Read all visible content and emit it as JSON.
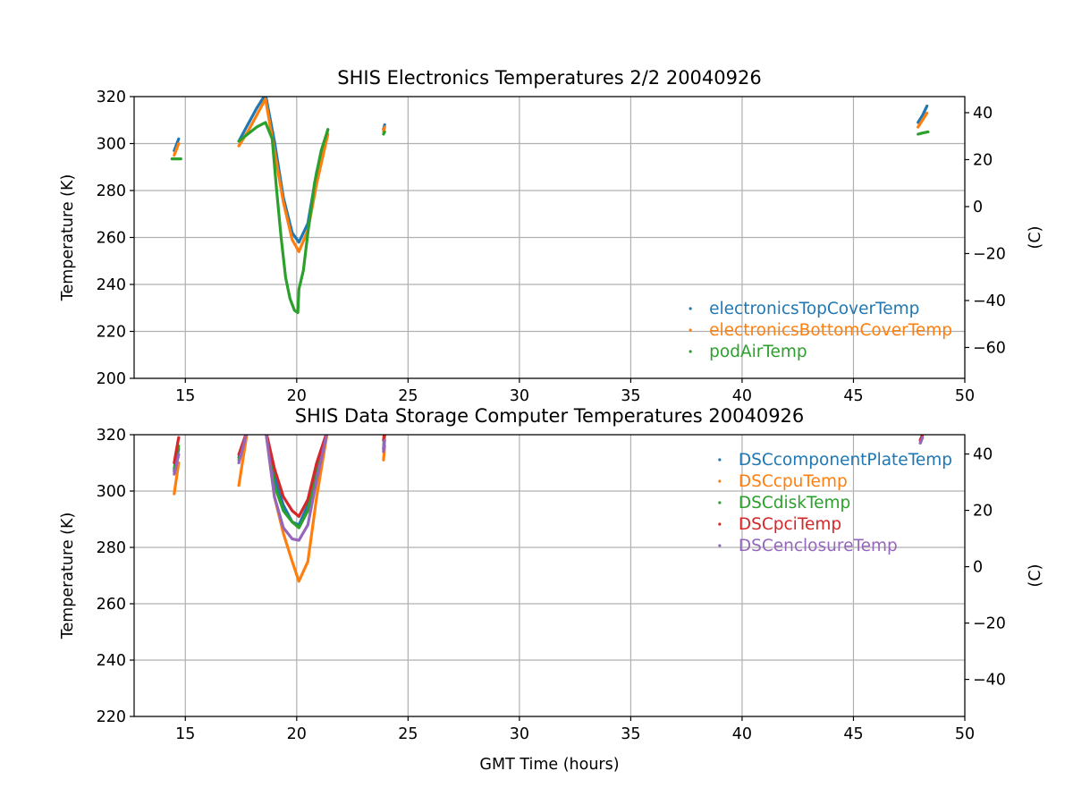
{
  "chart_data": [
    {
      "type": "scatter",
      "title": "SHIS Electronics Temperatures 2/2 20040926",
      "xlabel": "",
      "ylabel": "Temperature (K)",
      "ylabel_right": "(C)",
      "xlim": [
        12.7,
        50.0
      ],
      "ylim": [
        200,
        320
      ],
      "xticks": [
        15,
        20,
        25,
        30,
        35,
        40,
        45,
        50
      ],
      "yticks": [
        200,
        220,
        240,
        260,
        280,
        300,
        320
      ],
      "yticks_right": [
        -60,
        -40,
        -20,
        0,
        20,
        40
      ],
      "grid": true,
      "legend_position": "lower-right",
      "series": [
        {
          "name": "electronicsTopCoverTemp",
          "color": "#1f77b4",
          "segments": [
            [
              [
                14.5,
                297
              ],
              [
                14.7,
                302
              ]
            ],
            [
              [
                17.4,
                301
              ],
              [
                17.8,
                308
              ],
              [
                18.2,
                315
              ],
              [
                18.6,
                321
              ],
              [
                19.0,
                301
              ],
              [
                19.4,
                277
              ],
              [
                19.8,
                262
              ],
              [
                20.1,
                258
              ],
              [
                20.5,
                266
              ],
              [
                20.9,
                288
              ],
              [
                21.4,
                306
              ]
            ],
            [
              [
                23.9,
                306
              ],
              [
                23.95,
                308
              ]
            ],
            [
              [
                47.9,
                309
              ],
              [
                48.1,
                312
              ],
              [
                48.3,
                316
              ]
            ]
          ]
        },
        {
          "name": "electronicsBottomCoverTemp",
          "color": "#ff7f0e",
          "segments": [
            [
              [
                14.5,
                295
              ],
              [
                14.7,
                300
              ]
            ],
            [
              [
                17.4,
                299
              ],
              [
                17.8,
                305
              ],
              [
                18.2,
                312
              ],
              [
                18.6,
                319
              ],
              [
                19.0,
                297
              ],
              [
                19.4,
                275
              ],
              [
                19.8,
                259
              ],
              [
                20.1,
                254
              ],
              [
                20.5,
                263
              ],
              [
                20.9,
                283
              ],
              [
                21.4,
                304
              ]
            ],
            [
              [
                23.9,
                305
              ],
              [
                23.95,
                307
              ]
            ],
            [
              [
                47.9,
                307
              ],
              [
                48.1,
                310
              ],
              [
                48.3,
                313
              ]
            ]
          ]
        },
        {
          "name": "podAirTemp",
          "color": "#2ca02c",
          "segments": [
            [
              [
                14.4,
                293.5
              ],
              [
                14.8,
                293.5
              ]
            ],
            [
              [
                17.4,
                301
              ],
              [
                17.8,
                304
              ],
              [
                18.2,
                307
              ],
              [
                18.6,
                309
              ],
              [
                18.9,
                302
              ],
              [
                19.1,
                280
              ],
              [
                19.3,
                260
              ],
              [
                19.5,
                243
              ],
              [
                19.7,
                234
              ],
              [
                19.9,
                229
              ],
              [
                20.05,
                228
              ],
              [
                20.1,
                238
              ],
              [
                20.3,
                246
              ],
              [
                20.5,
                262
              ],
              [
                20.8,
                283
              ],
              [
                21.1,
                297
              ],
              [
                21.4,
                306
              ]
            ],
            [
              [
                23.9,
                304
              ],
              [
                23.95,
                305
              ]
            ],
            [
              [
                47.9,
                304
              ],
              [
                48.1,
                304.5
              ],
              [
                48.35,
                305
              ]
            ]
          ]
        }
      ]
    },
    {
      "type": "scatter",
      "title": "SHIS Data Storage Computer Temperatures 20040926",
      "xlabel": "GMT Time (hours)",
      "ylabel": "Temperature (K)",
      "ylabel_right": "(C)",
      "xlim": [
        12.7,
        50.0
      ],
      "ylim": [
        220,
        320
      ],
      "xticks": [
        15,
        20,
        25,
        30,
        35,
        40,
        45,
        50
      ],
      "yticks": [
        220,
        240,
        260,
        280,
        300,
        320
      ],
      "yticks_right": [
        -40,
        -20,
        0,
        20,
        40
      ],
      "grid": true,
      "legend_position": "upper-right",
      "series": [
        {
          "name": "DSCcomponentPlateTemp",
          "color": "#1f77b4",
          "segments": [
            [
              [
                14.5,
                307
              ],
              [
                14.7,
                315
              ]
            ],
            [
              [
                17.4,
                312
              ],
              [
                17.8,
                322
              ]
            ],
            [
              [
                18.6,
                322
              ],
              [
                19.0,
                305
              ],
              [
                19.4,
                295
              ],
              [
                19.8,
                289
              ],
              [
                20.1,
                288
              ],
              [
                20.5,
                295
              ],
              [
                20.9,
                308
              ],
              [
                21.4,
                322
              ]
            ],
            [
              [
                23.9,
                315
              ],
              [
                23.95,
                320
              ]
            ],
            [
              [
                48.0,
                318
              ],
              [
                48.1,
                320
              ]
            ]
          ]
        },
        {
          "name": "DSCcpuTemp",
          "color": "#ff7f0e",
          "segments": [
            [
              [
                14.5,
                299
              ],
              [
                14.7,
                310
              ]
            ],
            [
              [
                17.4,
                302
              ],
              [
                17.8,
                322
              ]
            ],
            [
              [
                18.6,
                322
              ],
              [
                19.0,
                298
              ],
              [
                19.4,
                285
              ],
              [
                19.8,
                275
              ],
              [
                20.1,
                268
              ],
              [
                20.5,
                275
              ],
              [
                20.9,
                298
              ],
              [
                21.4,
                322
              ]
            ],
            [
              [
                23.9,
                311
              ],
              [
                23.95,
                316
              ]
            ],
            [
              [
                48.0,
                317
              ],
              [
                48.1,
                319
              ]
            ]
          ]
        },
        {
          "name": "DSCdiskTemp",
          "color": "#2ca02c",
          "segments": [
            [
              [
                14.5,
                308
              ],
              [
                14.7,
                316
              ]
            ],
            [
              [
                17.4,
                311
              ],
              [
                17.8,
                322
              ]
            ],
            [
              [
                18.6,
                322
              ],
              [
                19.0,
                302
              ],
              [
                19.4,
                293
              ],
              [
                19.8,
                289
              ],
              [
                20.1,
                287
              ],
              [
                20.5,
                293
              ],
              [
                20.9,
                306
              ],
              [
                21.4,
                322
              ]
            ],
            [
              [
                23.9,
                315
              ],
              [
                23.95,
                320
              ]
            ],
            [
              [
                48.0,
                318
              ],
              [
                48.1,
                320
              ]
            ]
          ]
        },
        {
          "name": "DSCpciTemp",
          "color": "#d62728",
          "segments": [
            [
              [
                14.5,
                310
              ],
              [
                14.7,
                319
              ]
            ],
            [
              [
                17.4,
                313
              ],
              [
                17.8,
                322
              ]
            ],
            [
              [
                18.6,
                322
              ],
              [
                19.0,
                308
              ],
              [
                19.4,
                298
              ],
              [
                19.8,
                293
              ],
              [
                20.1,
                291
              ],
              [
                20.5,
                297
              ],
              [
                20.9,
                310
              ],
              [
                21.4,
                322
              ]
            ],
            [
              [
                23.9,
                318
              ],
              [
                23.95,
                322
              ]
            ],
            [
              [
                48.0,
                318
              ],
              [
                48.1,
                320
              ]
            ]
          ]
        },
        {
          "name": "DSCenclosureTemp",
          "color": "#9467bd",
          "segments": [
            [
              [
                14.5,
                306
              ],
              [
                14.7,
                313
              ]
            ],
            [
              [
                17.4,
                310
              ],
              [
                17.8,
                322
              ]
            ],
            [
              [
                18.6,
                322
              ],
              [
                19.0,
                298
              ],
              [
                19.4,
                287
              ],
              [
                19.8,
                283
              ],
              [
                20.1,
                282.5
              ],
              [
                20.5,
                288
              ],
              [
                20.9,
                304
              ],
              [
                21.4,
                322
              ]
            ],
            [
              [
                23.9,
                314
              ],
              [
                23.95,
                318
              ]
            ],
            [
              [
                48.0,
                317
              ],
              [
                48.1,
                319
              ]
            ]
          ]
        }
      ]
    }
  ]
}
